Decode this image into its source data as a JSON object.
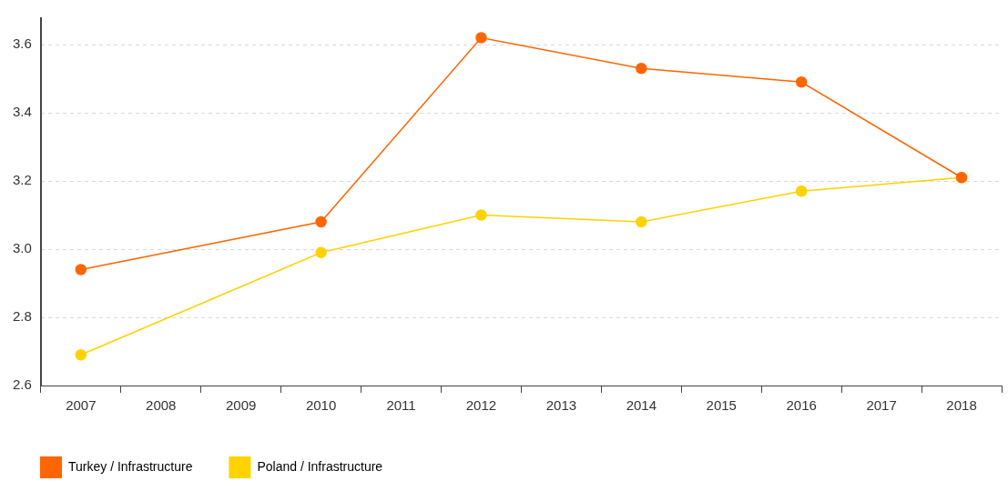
{
  "chart_data": {
    "type": "line",
    "categories": [
      "2007",
      "2008",
      "2009",
      "2010",
      "2011",
      "2012",
      "2013",
      "2014",
      "2015",
      "2016",
      "2017",
      "2018"
    ],
    "series": [
      {
        "name": "Turkey / Infrastructure",
        "color": "#ff6600",
        "marker": "circle",
        "line_style": "solid",
        "values": [
          2.94,
          null,
          null,
          3.08,
          null,
          3.62,
          null,
          3.53,
          null,
          3.49,
          null,
          3.21
        ]
      },
      {
        "name": "Poland / Infrastructure",
        "color": "#ffd200",
        "marker": "circle",
        "line_style": "solid",
        "values": [
          2.69,
          null,
          null,
          2.99,
          null,
          3.1,
          null,
          3.08,
          null,
          3.17,
          null,
          3.21
        ]
      }
    ],
    "ylim": [
      2.6,
      3.68
    ],
    "yticks": [
      2.6,
      2.8,
      {
        "value": 3,
        "label": "3.0"
      },
      3.2,
      3.4,
      3.6
    ],
    "grid": true,
    "legend": "bottom"
  }
}
